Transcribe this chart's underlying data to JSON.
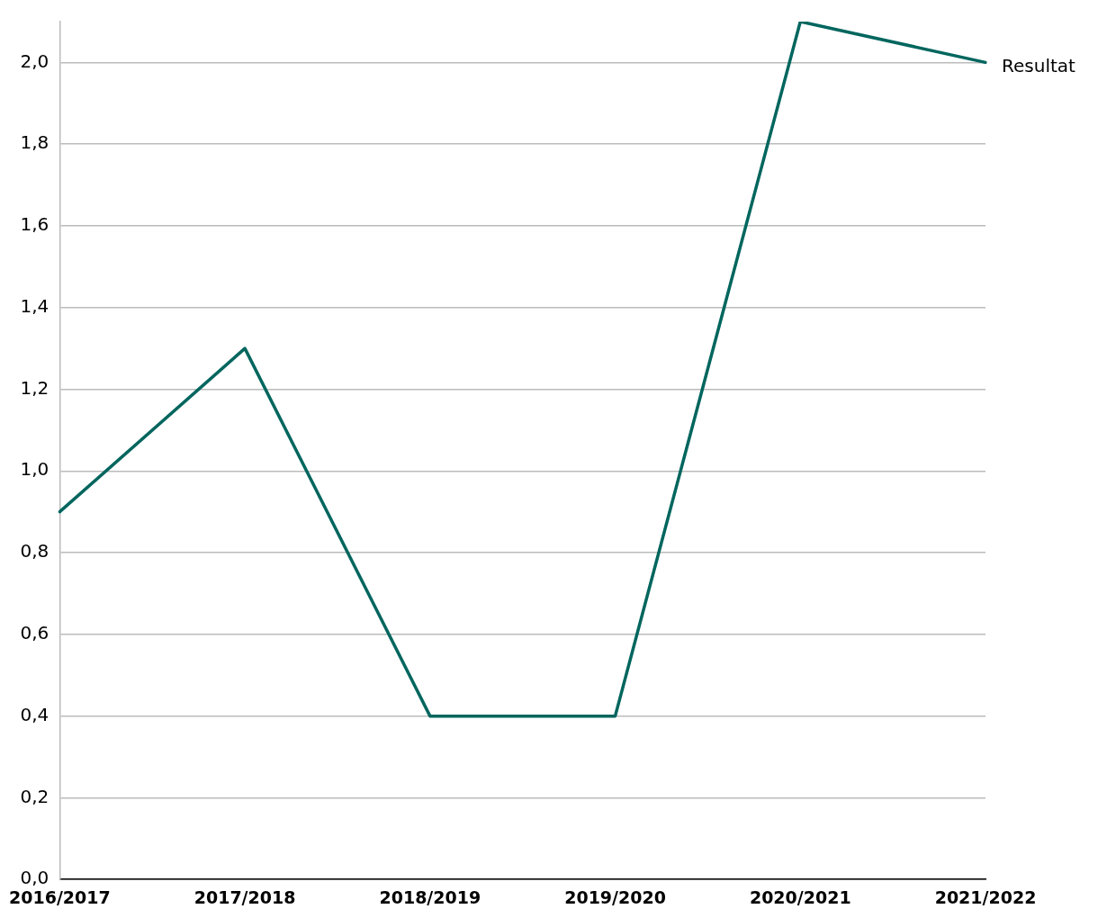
{
  "chart_data": {
    "type": "line",
    "categories": [
      "2016/2017",
      "2017/2018",
      "2018/2019",
      "2019/2020",
      "2020/2021",
      "2021/2022"
    ],
    "series": [
      {
        "name": "Resultat",
        "color": "#00665e",
        "values": [
          0.9,
          1.3,
          0.4,
          0.4,
          2.1,
          2.0
        ]
      }
    ],
    "ylim": [
      0,
      2.1
    ],
    "yticks": [
      {
        "value": 0,
        "label": "0,0"
      },
      {
        "value": 0.2,
        "label": "0,2"
      },
      {
        "value": 0.4,
        "label": "0,4"
      },
      {
        "value": 0.6,
        "label": "0,6"
      },
      {
        "value": 0.8,
        "label": "0,8"
      },
      {
        "value": 1,
        "label": "1,0"
      },
      {
        "value": 1.2,
        "label": "1,2"
      },
      {
        "value": 1.4,
        "label": "1,4"
      },
      {
        "value": 1.6,
        "label": "1,6"
      },
      {
        "value": 1.8,
        "label": "1,8"
      },
      {
        "value": 2,
        "label": "2,0"
      }
    ],
    "grid": "y",
    "legend": false,
    "marker": "none",
    "line_style": "solid"
  }
}
